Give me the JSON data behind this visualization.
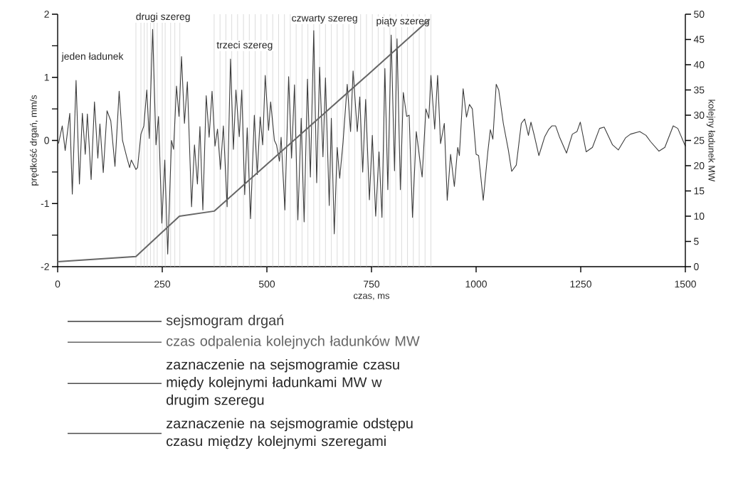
{
  "chart_data": {
    "type": "line",
    "xlabel": "czas, ms",
    "ylabel": "prędkość drgań, mm/s",
    "y2label": "kolejny ładunek MW",
    "xlim": [
      0,
      1500
    ],
    "xticks": [
      0,
      250,
      500,
      750,
      1000,
      1250,
      1500
    ],
    "ylim": [
      -2,
      2
    ],
    "yticks": [
      -2,
      {
        "value": -1.5,
        "label": null
      },
      -1,
      {
        "value": -0.5,
        "label": null
      },
      0,
      {
        "value": 0.5,
        "label": null
      },
      1,
      {
        "value": 1.5,
        "label": null
      },
      2
    ],
    "y2lim": [
      0,
      50
    ],
    "y2ticks": [
      0,
      5,
      10,
      15,
      20,
      25,
      30,
      35,
      40,
      45,
      50
    ],
    "grid": false,
    "legend": "bottom",
    "marker": "none",
    "line_style": "solid",
    "series": [
      {
        "name": "sejsmogram drgań",
        "color": "#3c3c3c",
        "x": [
          2,
          11,
          18,
          29,
          35,
          44,
          52,
          59,
          66,
          71,
          80,
          88,
          96,
          101,
          109,
          118,
          127,
          137,
          147,
          155,
          165,
          172,
          176,
          187,
          191,
          199,
          206,
          213,
          219,
          227,
          235,
          241,
          249,
          256,
          263,
          272,
          277,
          284,
          290,
          296,
          303,
          310,
          320,
          327,
          334,
          340,
          347,
          355,
          362,
          369,
          376,
          382,
          389,
          396,
          405,
          413,
          420,
          426,
          434,
          440,
          447,
          453,
          461,
          470,
          477,
          484,
          490,
          496,
          504,
          509,
          518,
          523,
          530,
          534,
          543,
          552,
          559,
          566,
          574,
          582,
          589,
          597,
          604,
          612,
          619,
          626,
          634,
          640,
          649,
          654,
          661,
          668,
          674,
          682,
          692,
          700,
          706,
          716,
          722,
          729,
          736,
          745,
          752,
          760,
          768,
          775,
          782,
          789,
          797,
          805,
          811,
          819,
          826,
          834,
          840,
          848,
          857,
          865,
          871,
          880,
          887,
          892,
          901,
          908,
          915,
          924,
          931,
          939,
          948,
          956,
          960,
          969,
          977,
          984,
          991,
          1000,
          1006,
          1017,
          1028,
          1034,
          1040,
          1048,
          1054,
          1065,
          1077,
          1085,
          1096,
          1108,
          1116,
          1125,
          1131,
          1139,
          1150,
          1164,
          1173,
          1181,
          1190,
          1199,
          1216,
          1230,
          1241,
          1249,
          1263,
          1278,
          1295,
          1306,
          1326,
          1340,
          1357,
          1369,
          1380,
          1391,
          1406,
          1417,
          1437,
          1451,
          1471,
          1482,
          1500
        ],
        "values": [
          -0.05,
          0.23,
          -0.16,
          0.43,
          -0.85,
          0.95,
          -0.69,
          0.43,
          -0.22,
          0.42,
          -0.62,
          0.61,
          -0.28,
          0.26,
          -0.51,
          0.47,
          0.31,
          -0.41,
          0.78,
          0.0,
          -0.26,
          -0.43,
          -0.31,
          -0.46,
          -0.43,
          0.1,
          0.23,
          0.8,
          0.03,
          1.76,
          -0.07,
          0.38,
          -1.31,
          -0.31,
          -1.8,
          0.0,
          -0.14,
          0.86,
          0.38,
          1.33,
          0.27,
          0.93,
          -1.05,
          -0.07,
          -0.69,
          0.22,
          -1.1,
          0.71,
          0.05,
          0.78,
          -0.09,
          0.18,
          -0.46,
          0.23,
          -1.05,
          1.29,
          -0.14,
          0.8,
          0.06,
          0.8,
          -0.86,
          0.2,
          -1.24,
          0.4,
          -0.54,
          0.37,
          -0.07,
          1.03,
          0.16,
          0.61,
          0.0,
          -0.07,
          -0.33,
          0.05,
          -1.1,
          1.01,
          -0.28,
          0.88,
          -1.26,
          0.35,
          -1.29,
          0.97,
          -0.58,
          1.74,
          -0.67,
          1.16,
          -0.26,
          0.99,
          -1.03,
          0.35,
          -1.48,
          -0.11,
          -0.6,
          -0.03,
          0.89,
          0.14,
          1.1,
          0.14,
          0.69,
          -0.5,
          0.65,
          -0.94,
          0.08,
          -1.2,
          -0.18,
          -1.22,
          1.14,
          -0.78,
          1.67,
          -0.48,
          1.61,
          -0.78,
          0.76,
          0.38,
          0.4,
          -1.22,
          0.14,
          -0.28,
          -0.58,
          0.5,
          0.35,
          1.03,
          0.18,
          1.03,
          -0.05,
          0.27,
          -0.95,
          -0.22,
          -0.73,
          -0.11,
          -0.24,
          0.82,
          0.37,
          0.57,
          0.5,
          -0.22,
          -0.24,
          -0.95,
          -0.18,
          0.17,
          0.02,
          0.89,
          0.8,
          0.27,
          -0.15,
          -0.49,
          -0.39,
          0.27,
          0.34,
          0.08,
          0.29,
          0.08,
          -0.24,
          0.06,
          0.17,
          0.23,
          0.23,
          0.06,
          -0.2,
          0.1,
          0.14,
          0.29,
          -0.18,
          -0.11,
          0.19,
          0.21,
          -0.07,
          -0.15,
          0.04,
          0.1,
          0.12,
          0.14,
          0.08,
          -0.02,
          -0.17,
          -0.11,
          0.23,
          0.19,
          -0.09
        ]
      },
      {
        "name": "czas odpalenia kolejnych ładunków MW",
        "color": "#666666",
        "axis": "y2",
        "x": [
          0,
          187,
          291,
          374,
          741,
          889
        ],
        "values": [
          1,
          2,
          10,
          11,
          38,
          49
        ]
      }
    ],
    "ref_lines": [
      {
        "axis": "x",
        "value": 187,
        "color": "#cccccc"
      },
      {
        "axis": "x",
        "value": 199,
        "color": "#cccccc"
      },
      {
        "axis": "x",
        "value": 207,
        "color": "#cccccc"
      },
      {
        "axis": "x",
        "value": 214,
        "color": "#cccccc"
      },
      {
        "axis": "x",
        "value": 222,
        "color": "#cccccc"
      },
      {
        "axis": "x",
        "value": 230,
        "color": "#cccccc"
      },
      {
        "axis": "x",
        "value": 238,
        "color": "#cccccc"
      },
      {
        "axis": "x",
        "value": 250,
        "color": "#cccccc"
      },
      {
        "axis": "x",
        "value": 257,
        "color": "#cccccc"
      },
      {
        "axis": "x",
        "value": 270,
        "color": "#cccccc"
      },
      {
        "axis": "x",
        "value": 280,
        "color": "#cccccc"
      },
      {
        "axis": "x",
        "value": 292,
        "color": "#cccccc"
      },
      {
        "axis": "x",
        "value": 374,
        "color": "#cccccc"
      },
      {
        "axis": "x",
        "value": 388,
        "color": "#cccccc"
      },
      {
        "axis": "x",
        "value": 402,
        "color": "#cccccc"
      },
      {
        "axis": "x",
        "value": 416,
        "color": "#cccccc"
      },
      {
        "axis": "x",
        "value": 430,
        "color": "#cccccc"
      },
      {
        "axis": "x",
        "value": 444,
        "color": "#cccccc"
      },
      {
        "axis": "x",
        "value": 458,
        "color": "#cccccc"
      },
      {
        "axis": "x",
        "value": 472,
        "color": "#cccccc"
      },
      {
        "axis": "x",
        "value": 486,
        "color": "#cccccc"
      },
      {
        "axis": "x",
        "value": 500,
        "color": "#cccccc"
      },
      {
        "axis": "x",
        "value": 514,
        "color": "#cccccc"
      },
      {
        "axis": "x",
        "value": 528,
        "color": "#cccccc"
      },
      {
        "axis": "x",
        "value": 542,
        "color": "#cccccc"
      },
      {
        "axis": "x",
        "value": 556,
        "color": "#cccccc"
      },
      {
        "axis": "x",
        "value": 570,
        "color": "#cccccc"
      },
      {
        "axis": "x",
        "value": 584,
        "color": "#cccccc"
      },
      {
        "axis": "x",
        "value": 598,
        "color": "#cccccc"
      },
      {
        "axis": "x",
        "value": 612,
        "color": "#cccccc"
      },
      {
        "axis": "x",
        "value": 626,
        "color": "#cccccc"
      },
      {
        "axis": "x",
        "value": 640,
        "color": "#cccccc"
      },
      {
        "axis": "x",
        "value": 654,
        "color": "#cccccc"
      },
      {
        "axis": "x",
        "value": 668,
        "color": "#cccccc"
      },
      {
        "axis": "x",
        "value": 682,
        "color": "#cccccc"
      },
      {
        "axis": "x",
        "value": 696,
        "color": "#cccccc"
      },
      {
        "axis": "x",
        "value": 710,
        "color": "#cccccc"
      },
      {
        "axis": "x",
        "value": 724,
        "color": "#cccccc"
      },
      {
        "axis": "x",
        "value": 738,
        "color": "#cccccc"
      },
      {
        "axis": "x",
        "value": 752,
        "color": "#cccccc"
      },
      {
        "axis": "x",
        "value": 766,
        "color": "#cccccc"
      },
      {
        "axis": "x",
        "value": 780,
        "color": "#cccccc"
      },
      {
        "axis": "x",
        "value": 794,
        "color": "#cccccc"
      },
      {
        "axis": "x",
        "value": 808,
        "color": "#cccccc"
      },
      {
        "axis": "x",
        "value": 822,
        "color": "#cccccc"
      },
      {
        "axis": "x",
        "value": 836,
        "color": "#cccccc"
      },
      {
        "axis": "x",
        "value": 850,
        "color": "#cccccc"
      },
      {
        "axis": "x",
        "value": 864,
        "color": "#cccccc"
      },
      {
        "axis": "x",
        "value": 878,
        "color": "#cccccc"
      },
      {
        "axis": "x",
        "value": 892,
        "color": "#cccccc"
      }
    ],
    "annotations": [
      "jeden ładunek",
      {
        "text": "drugi szereg",
        "x": 252,
        "y": 1.95
      },
      {
        "text": "trzeci szereg",
        "x": 447,
        "y": 1.5
      },
      {
        "text": "czwarty szereg",
        "x": 638,
        "y": 1.92
      },
      {
        "text": "piąty szereg",
        "x": 825,
        "y": 1.88
      },
      "zaznaczenie na sejsmogramie czasu międy kolejnymi ładunkami MW w drugim szeregu",
      "zaznaczenie na sejsmogramie odstępu czasu między kolejnymi szeregami"
    ]
  }
}
